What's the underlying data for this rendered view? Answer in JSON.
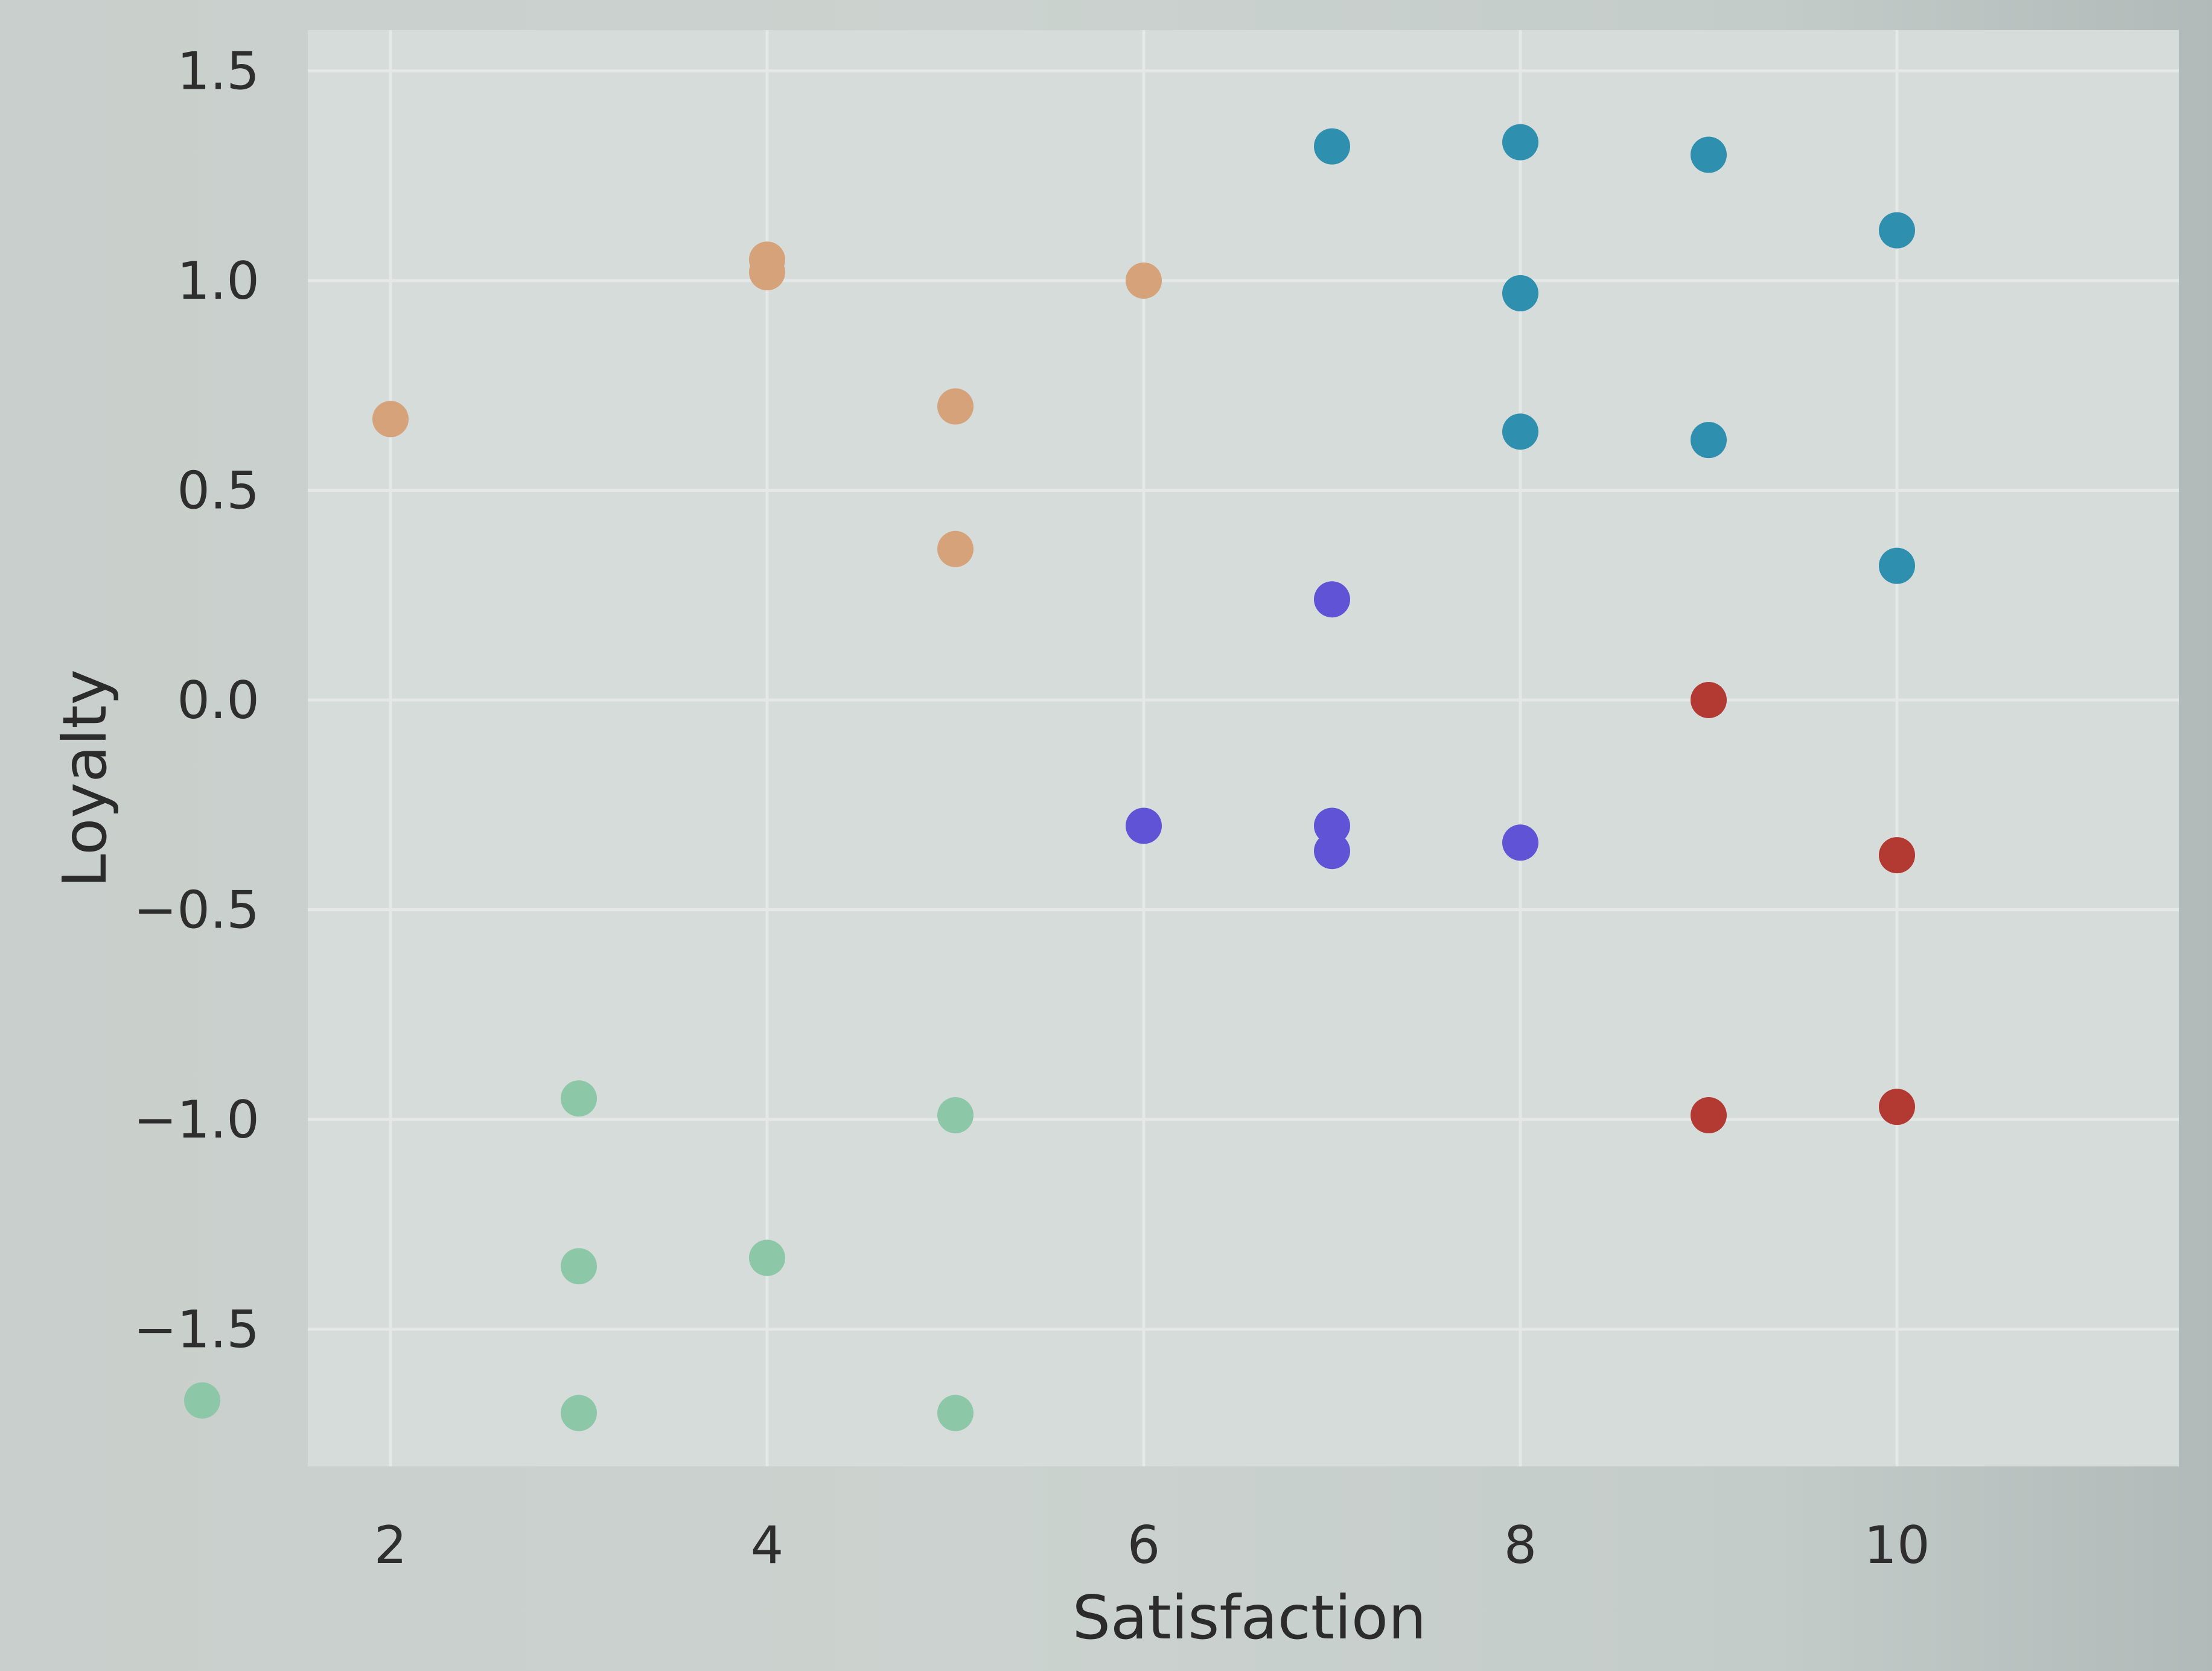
{
  "chart_data": {
    "type": "scatter",
    "title": "",
    "xlabel": "Satisfaction",
    "ylabel": "Loyalty",
    "xlim": [
      0.8,
      10.3
    ],
    "ylim": [
      -1.85,
      1.65
    ],
    "xticks": [
      2,
      4,
      6,
      8,
      10
    ],
    "yticks": [
      1.5,
      1.0,
      0.5,
      0.0,
      -0.5,
      -1.0,
      -1.5
    ],
    "xtick_labels": [
      "2",
      "4",
      "6",
      "8",
      "10"
    ],
    "ytick_labels": [
      "1.5",
      "1.0",
      "0.5",
      "0.0",
      "−0.5",
      "−1.0",
      "−1.5"
    ],
    "grid": true,
    "legend": "none",
    "series": [
      {
        "color": "#d6a27a",
        "points": [
          [
            2,
            0.67
          ],
          [
            4,
            1.02
          ],
          [
            4,
            1.05
          ],
          [
            5,
            0.7
          ],
          [
            5,
            0.36
          ],
          [
            6,
            1.0
          ]
        ]
      },
      {
        "color": "#2e8fae",
        "points": [
          [
            7,
            1.32
          ],
          [
            8,
            1.33
          ],
          [
            9,
            1.3
          ],
          [
            10,
            1.12
          ],
          [
            8,
            0.97
          ],
          [
            8,
            0.64
          ],
          [
            9,
            0.62
          ],
          [
            10,
            0.32
          ]
        ]
      },
      {
        "color": "#6153d6",
        "points": [
          [
            7,
            0.24
          ],
          [
            6,
            -0.3
          ],
          [
            7,
            -0.3
          ],
          [
            7,
            -0.36
          ],
          [
            8,
            -0.34
          ]
        ]
      },
      {
        "color": "#b23a33",
        "points": [
          [
            9,
            0.0
          ],
          [
            10,
            -0.37
          ],
          [
            9,
            -0.99
          ],
          [
            10,
            -0.97
          ]
        ]
      },
      {
        "color": "#8cc8a8",
        "points": [
          [
            1,
            -1.67
          ],
          [
            3,
            -0.95
          ],
          [
            3,
            -1.35
          ],
          [
            3,
            -1.7
          ],
          [
            4,
            -1.33
          ],
          [
            5,
            -0.99
          ],
          [
            5,
            -1.7
          ]
        ]
      }
    ]
  }
}
